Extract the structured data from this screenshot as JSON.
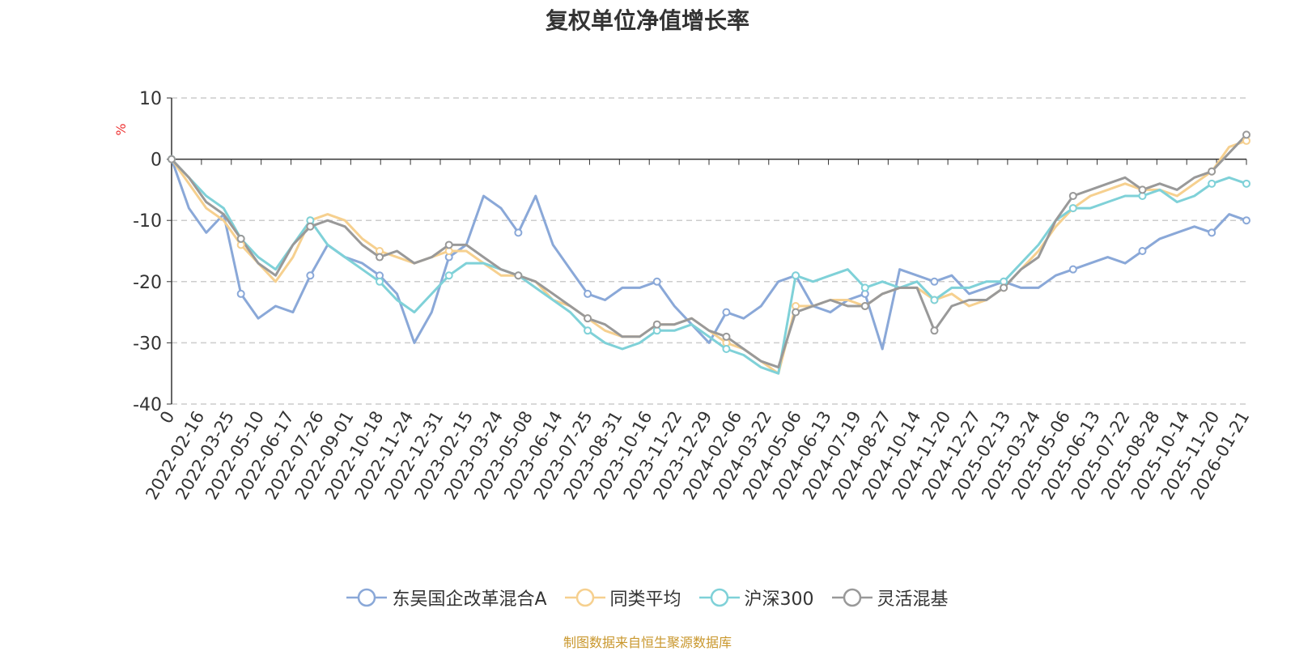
{
  "chart_data": {
    "type": "line",
    "title": "复权单位净值增长率",
    "ylabel": "%",
    "ylim": [
      -40,
      10
    ],
    "yticks": [
      10,
      0,
      -10,
      -20,
      -30,
      -40
    ],
    "grid": true,
    "legend_position": "bottom-center",
    "x_tick_labels": [
      "0",
      "2022-02-16",
      "2022-03-25",
      "2022-05-10",
      "2022-06-17",
      "2022-07-26",
      "2022-09-01",
      "2022-10-18",
      "2022-11-24",
      "2022-12-31",
      "2023-02-15",
      "2023-03-24",
      "2023-05-08",
      "2023-06-14",
      "2023-07-25",
      "2023-08-31",
      "2023-10-16",
      "2023-11-22",
      "2023-12-29",
      "2024-02-06",
      "2024-03-22",
      "2024-05-06",
      "2024-06-13",
      "2024-07-19",
      "2024-08-27",
      "2024-10-14",
      "2024-11-20",
      "2024-12-27",
      "2025-02-13",
      "2025-03-24",
      "2025-05-06",
      "2025-06-13",
      "2025-07-22",
      "2025-08-28",
      "2025-10-14",
      "2025-11-20",
      "2026-01-21"
    ],
    "series": [
      {
        "name": "东吴国企改革混合A",
        "color": "#8aa8d8",
        "values": [
          0,
          -8,
          -12,
          -9,
          -22,
          -26,
          -24,
          -25,
          -19,
          -14,
          -16,
          -17,
          -19,
          -22,
          -30,
          -25,
          -16,
          -14,
          -6,
          -8,
          -12,
          -6,
          -14,
          -18,
          -22,
          -23,
          -21,
          -21,
          -20,
          -24,
          -27,
          -30,
          -25,
          -26,
          -24,
          -20,
          -19,
          -24,
          -25,
          -23,
          -22,
          -31,
          -18,
          -19,
          -20,
          -19,
          -22,
          -21,
          -20,
          -21,
          -21,
          -19,
          -18,
          -17,
          -16,
          -17,
          -15,
          -13,
          -12,
          -11,
          -12,
          -9,
          -10
        ]
      },
      {
        "name": "同类平均",
        "color": "#f6d08f",
        "values": [
          0,
          -4,
          -8,
          -10,
          -14,
          -17,
          -20,
          -16,
          -10,
          -9,
          -10,
          -13,
          -15,
          -16,
          -17,
          -16,
          -15,
          -15,
          -17,
          -19,
          -19,
          -20,
          -23,
          -24,
          -26,
          -28,
          -29,
          -29,
          -27,
          -27,
          -26,
          -28,
          -30,
          -31,
          -33,
          -35,
          -24,
          -24,
          -23,
          -23,
          -24,
          -22,
          -21,
          -21,
          -23,
          -22,
          -24,
          -23,
          -21,
          -18,
          -15,
          -11,
          -8,
          -6,
          -5,
          -4,
          -5,
          -5,
          -6,
          -4,
          -2,
          2,
          3
        ]
      },
      {
        "name": "沪深300",
        "color": "#7fd1d8",
        "values": [
          0,
          -3,
          -6,
          -8,
          -13,
          -16,
          -18,
          -14,
          -10,
          -14,
          -16,
          -18,
          -20,
          -23,
          -25,
          -22,
          -19,
          -17,
          -17,
          -18,
          -19,
          -21,
          -23,
          -25,
          -28,
          -30,
          -31,
          -30,
          -28,
          -28,
          -27,
          -29,
          -31,
          -32,
          -34,
          -35,
          -19,
          -20,
          -19,
          -18,
          -21,
          -20,
          -21,
          -20,
          -23,
          -21,
          -21,
          -20,
          -20,
          -17,
          -14,
          -10,
          -8,
          -8,
          -7,
          -6,
          -6,
          -5,
          -7,
          -6,
          -4,
          -3,
          -4
        ]
      },
      {
        "name": "灵活混基",
        "color": "#999999",
        "values": [
          0,
          -3,
          -7,
          -9,
          -13,
          -17,
          -19,
          -14,
          -11,
          -10,
          -11,
          -14,
          -16,
          -15,
          -17,
          -16,
          -14,
          -14,
          -16,
          -18,
          -19,
          -20,
          -22,
          -24,
          -26,
          -27,
          -29,
          -29,
          -27,
          -27,
          -26,
          -28,
          -29,
          -31,
          -33,
          -34,
          -25,
          -24,
          -23,
          -24,
          -24,
          -22,
          -21,
          -21,
          -28,
          -24,
          -23,
          -23,
          -21,
          -18,
          -16,
          -10,
          -6,
          -5,
          -4,
          -3,
          -5,
          -4,
          -5,
          -3,
          -2,
          1,
          4
        ]
      }
    ]
  },
  "source_note": "制图数据来自恒生聚源数据库"
}
